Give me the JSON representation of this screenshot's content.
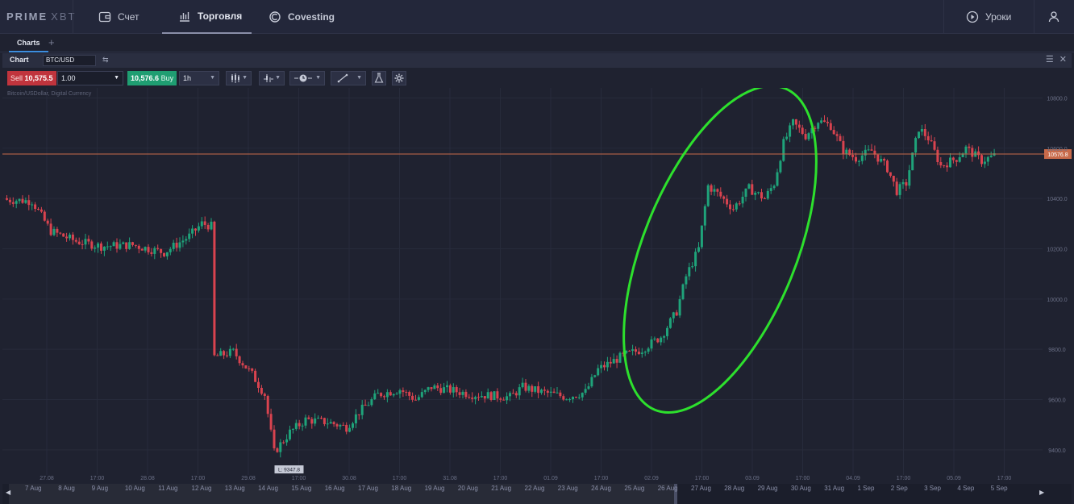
{
  "topnav": {
    "logo_main": "PRIME",
    "logo_sub": "XBT",
    "items": [
      {
        "label": "Счет",
        "icon": "wallet-icon"
      },
      {
        "label": "Торговля",
        "icon": "bar-chart-icon"
      },
      {
        "label": "Covesting",
        "icon": "covesting-icon"
      }
    ],
    "lessons_label": "Уроки",
    "lessons_icon": "play-circle-icon",
    "user_icon": "user-icon"
  },
  "tabs": {
    "charts_label": "Charts",
    "add_label": "+"
  },
  "chart_header": {
    "title": "Chart",
    "symbol": "BTC/USD"
  },
  "toolbar": {
    "sell_word": "Sell",
    "sell_price": "10,575.5",
    "quantity": "1.00",
    "buy_price": "10,576.6",
    "buy_word": "Buy",
    "interval": "1h"
  },
  "chart_data": {
    "type": "candlestick",
    "subtitle": "Bitcoin/USDollar, Digital Currency",
    "ylim": [
      9300,
      10840
    ],
    "y_ticks": [
      "10800.0",
      "10600.0",
      "10400.0",
      "10200.0",
      "10000.0",
      "9800.0",
      "9600.0",
      "9400.0"
    ],
    "y_tick_values": [
      10800,
      10600,
      10400,
      10200,
      10000,
      9800,
      9600,
      9400
    ],
    "current_price": 10576.8,
    "current_price_label": "10576.8",
    "low_label": "L: 9347.8",
    "low_value": 9347.8,
    "x_ticks": [
      "27.08",
      "17:00",
      "28.08",
      "17:00",
      "29.08",
      "17:00",
      "30.08",
      "17:00",
      "31.08",
      "17:00",
      "01.09",
      "17:00",
      "02.09",
      "17:00",
      "03.09",
      "17:00",
      "04.09",
      "17:00",
      "05.09",
      "17:00"
    ],
    "key_points": [
      {
        "i": 0,
        "price": 10395
      },
      {
        "i": 8,
        "price": 10390
      },
      {
        "i": 14,
        "price": 10270
      },
      {
        "i": 22,
        "price": 10230
      },
      {
        "i": 30,
        "price": 10210
      },
      {
        "i": 40,
        "price": 10215
      },
      {
        "i": 50,
        "price": 10185
      },
      {
        "i": 58,
        "price": 10250
      },
      {
        "i": 62,
        "price": 10300
      },
      {
        "i": 65,
        "price": 10290
      },
      {
        "i": 66,
        "price": 9770
      },
      {
        "i": 72,
        "price": 9790
      },
      {
        "i": 78,
        "price": 9700
      },
      {
        "i": 82,
        "price": 9620
      },
      {
        "i": 85,
        "price": 9390
      },
      {
        "i": 90,
        "price": 9470
      },
      {
        "i": 95,
        "price": 9520
      },
      {
        "i": 102,
        "price": 9510
      },
      {
        "i": 108,
        "price": 9490
      },
      {
        "i": 112,
        "price": 9550
      },
      {
        "i": 118,
        "price": 9620
      },
      {
        "i": 125,
        "price": 9640
      },
      {
        "i": 130,
        "price": 9600
      },
      {
        "i": 135,
        "price": 9650
      },
      {
        "i": 140,
        "price": 9640
      },
      {
        "i": 148,
        "price": 9620
      },
      {
        "i": 155,
        "price": 9615
      },
      {
        "i": 160,
        "price": 9610
      },
      {
        "i": 164,
        "price": 9650
      },
      {
        "i": 170,
        "price": 9630
      },
      {
        "i": 178,
        "price": 9610
      },
      {
        "i": 184,
        "price": 9630
      },
      {
        "i": 188,
        "price": 9720
      },
      {
        "i": 196,
        "price": 9775
      },
      {
        "i": 202,
        "price": 9800
      },
      {
        "i": 208,
        "price": 9850
      },
      {
        "i": 213,
        "price": 9950
      },
      {
        "i": 216,
        "price": 10090
      },
      {
        "i": 220,
        "price": 10200
      },
      {
        "i": 223,
        "price": 10450
      },
      {
        "i": 226,
        "price": 10420
      },
      {
        "i": 231,
        "price": 10360
      },
      {
        "i": 236,
        "price": 10440
      },
      {
        "i": 241,
        "price": 10400
      },
      {
        "i": 244,
        "price": 10460
      },
      {
        "i": 247,
        "price": 10620
      },
      {
        "i": 250,
        "price": 10700
      },
      {
        "i": 254,
        "price": 10650
      },
      {
        "i": 258,
        "price": 10710
      },
      {
        "i": 262,
        "price": 10690
      },
      {
        "i": 266,
        "price": 10590
      },
      {
        "i": 270,
        "price": 10560
      },
      {
        "i": 275,
        "price": 10590
      },
      {
        "i": 280,
        "price": 10520
      },
      {
        "i": 283,
        "price": 10430
      },
      {
        "i": 286,
        "price": 10460
      },
      {
        "i": 290,
        "price": 10680
      },
      {
        "i": 293,
        "price": 10640
      },
      {
        "i": 297,
        "price": 10530
      },
      {
        "i": 302,
        "price": 10560
      },
      {
        "i": 305,
        "price": 10600
      },
      {
        "i": 310,
        "price": 10550
      },
      {
        "i": 314,
        "price": 10570
      }
    ],
    "annotation": {
      "shape": "ellipse",
      "color": "#2de02d"
    }
  },
  "scrollbar": {
    "dates": [
      "7 Aug",
      "8 Aug",
      "9 Aug",
      "10 Aug",
      "11 Aug",
      "12 Aug",
      "13 Aug",
      "14 Aug",
      "15 Aug",
      "16 Aug",
      "17 Aug",
      "18 Aug",
      "19 Aug",
      "20 Aug",
      "21 Aug",
      "22 Aug",
      "23 Aug",
      "24 Aug",
      "25 Aug",
      "26 Aug",
      "27 Aug",
      "28 Aug",
      "29 Aug",
      "30 Aug",
      "31 Aug",
      "1 Sep",
      "2 Sep",
      "3 Sep",
      "4 Sep",
      "5 Sep"
    ],
    "left_arrow": "◀",
    "right_arrow": "▶"
  },
  "colors": {
    "up": "#1fa37a",
    "down": "#d9434f",
    "price_line": "#c86a4a",
    "accent": "#3c8dde"
  }
}
